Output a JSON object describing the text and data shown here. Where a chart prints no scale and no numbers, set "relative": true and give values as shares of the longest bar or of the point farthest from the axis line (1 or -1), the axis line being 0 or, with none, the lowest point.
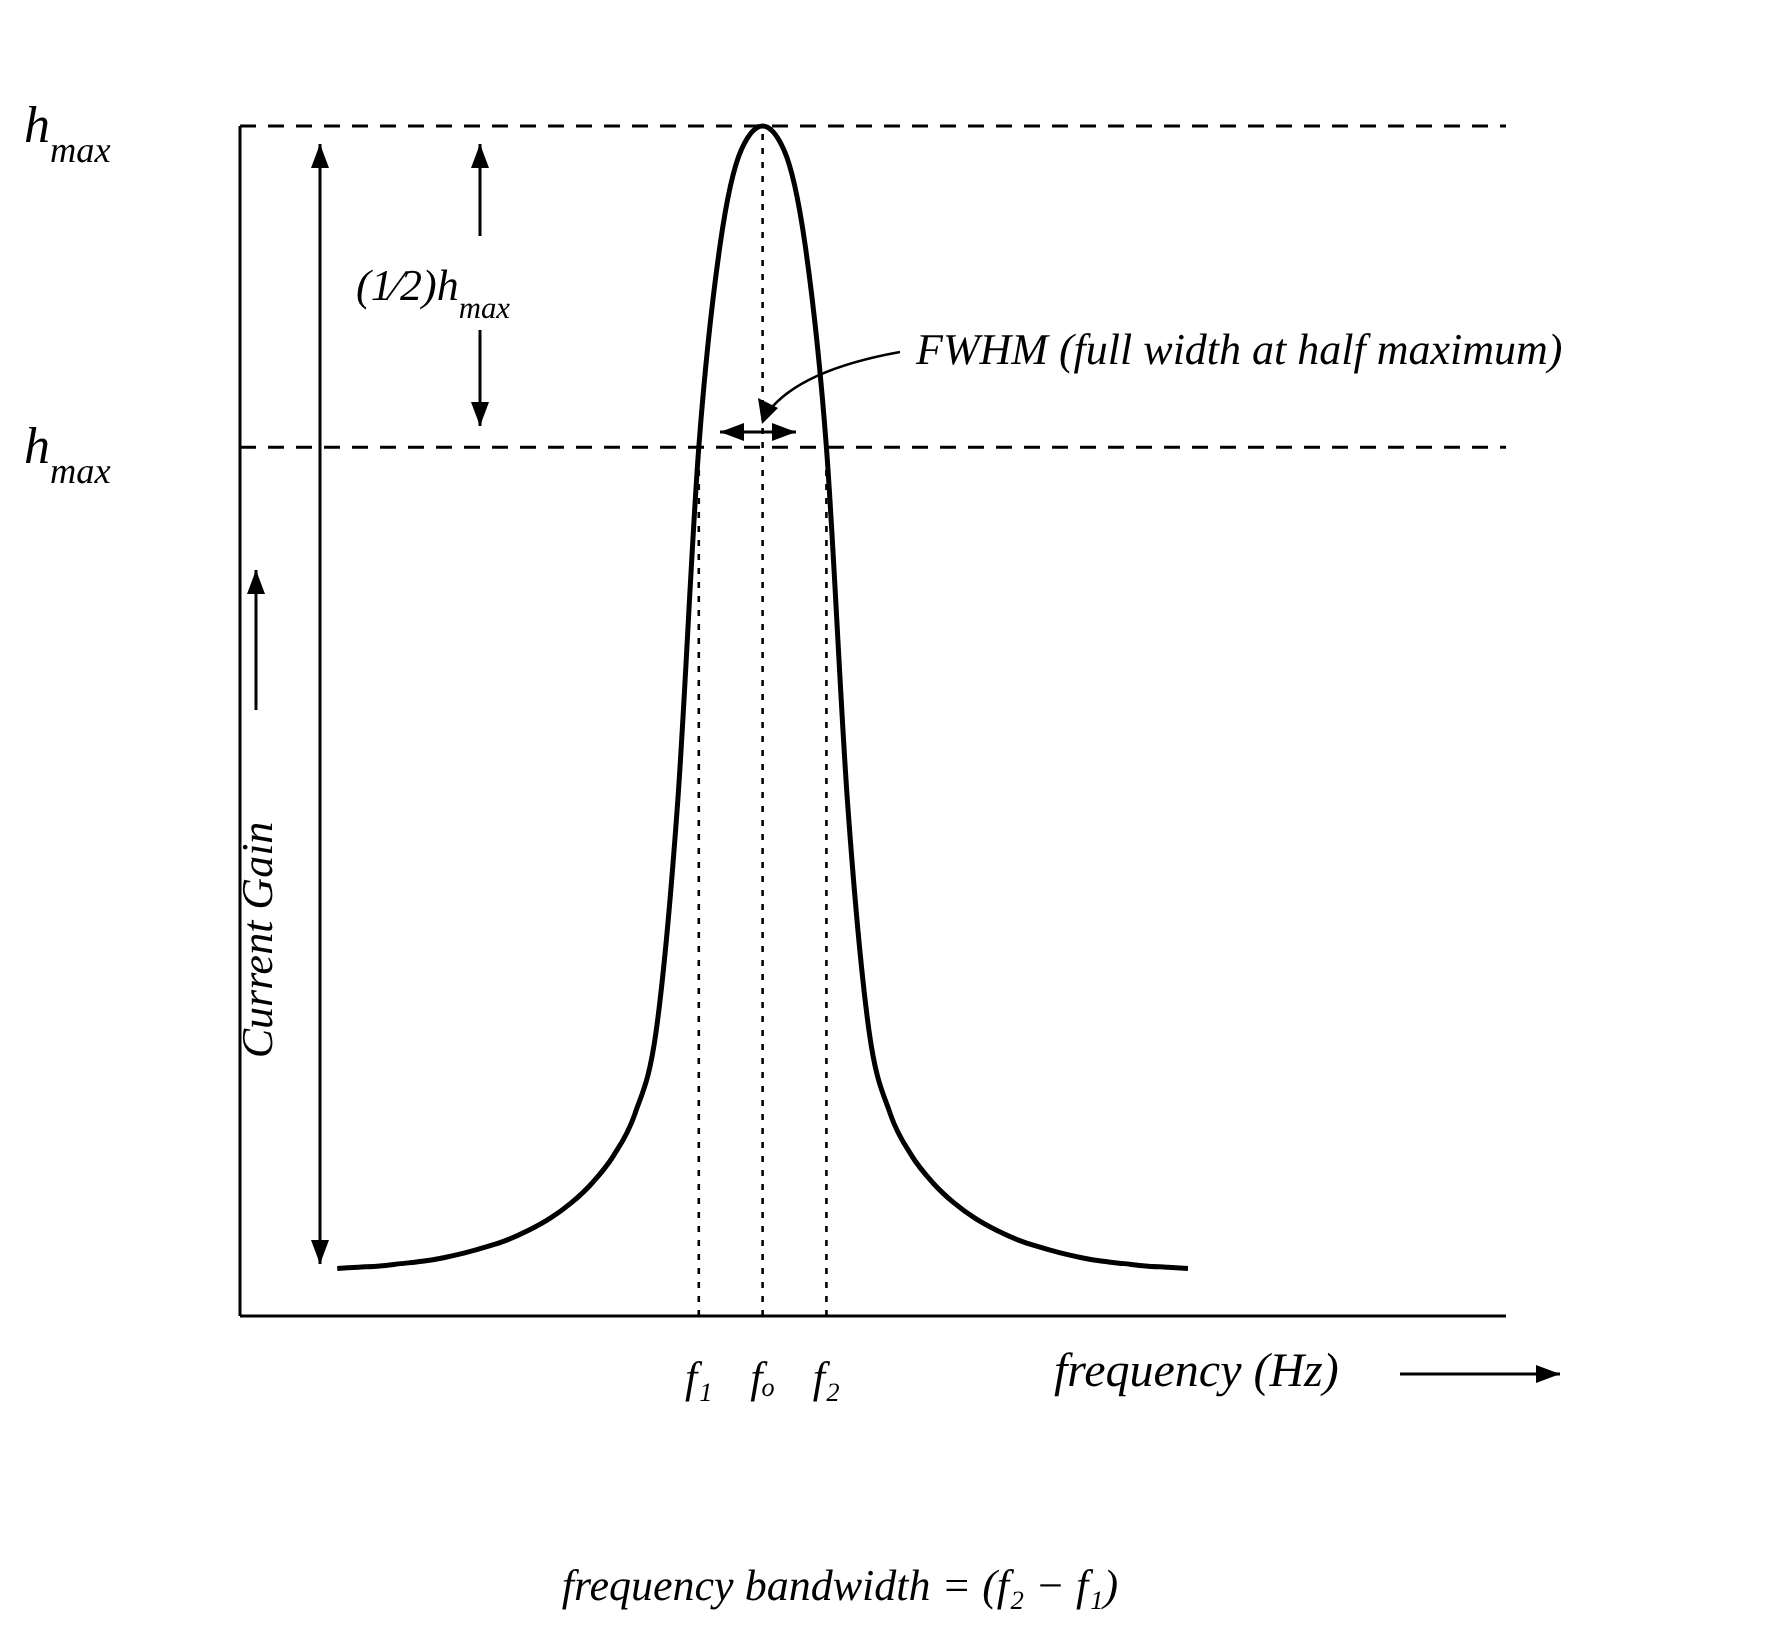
{
  "chart_data": {
    "type": "line",
    "relative": true,
    "xlabel": "frequency (Hz)",
    "ylabel": "Current Gain",
    "categories": [
      null,
      null,
      null,
      null,
      null,
      null,
      null,
      null,
      null,
      null,
      null,
      null,
      null,
      null,
      null,
      null,
      null,
      "f₁",
      null,
      null,
      "fₒ",
      null,
      null,
      "f₂",
      null,
      null,
      null,
      null,
      null,
      null,
      null,
      null,
      null,
      null,
      null,
      null,
      null,
      null,
      null,
      null,
      null
    ],
    "series": [
      {
        "color": "#000000",
        "values": [
          0.04,
          0.041,
          0.042,
          0.044,
          0.046,
          0.049,
          0.053,
          0.058,
          0.064,
          0.072,
          0.082,
          0.095,
          0.112,
          0.135,
          0.17,
          0.24,
          0.43,
          0.73,
          0.9,
          0.98,
          1,
          0.98,
          0.9,
          0.73,
          0.43,
          0.24,
          0.17,
          0.135,
          0.112,
          0.095,
          0.082,
          0.072,
          0.064,
          0.058,
          0.053,
          0.049,
          0.046,
          0.044,
          0.042,
          0.041,
          0.04
        ]
      }
    ],
    "ref_lines": [
      {
        "axis": "y",
        "value": 1,
        "label": "h$_{max}$",
        "line_style": "dashed",
        "color": "#000000"
      },
      {
        "axis": "y",
        "value": 0.73,
        "label": "h$_{max}$",
        "line_style": "dashed",
        "color": "#000000"
      },
      {
        "axis": "x",
        "value": "f₁",
        "line_style": "dotted",
        "color": "#000000"
      },
      {
        "axis": "x",
        "value": "fₒ",
        "line_style": "dotted",
        "color": "#000000"
      },
      {
        "axis": "x",
        "value": "f₂",
        "line_style": "dotted",
        "color": "#000000"
      }
    ],
    "annotations": [
      "(1⁄2)h$_{max}$",
      "FWHM (full width at half maximum)",
      "frequency bandwidth = (f₂ − f₁)"
    ],
    "line_style": "solid"
  }
}
